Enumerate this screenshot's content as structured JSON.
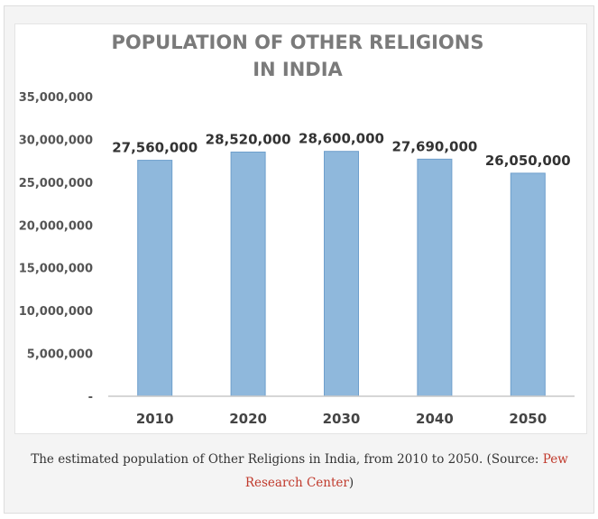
{
  "chart_data": {
    "type": "bar",
    "title_lines": [
      "POPULATION OF OTHER RELIGIONS",
      "IN INDIA"
    ],
    "categories": [
      "2010",
      "2020",
      "2030",
      "2040",
      "2050"
    ],
    "values": [
      27560000,
      28520000,
      28600000,
      27690000,
      26050000
    ],
    "data_labels": [
      "27,560,000",
      "28,520,000",
      "28,600,000",
      "27,690,000",
      "26,050,000"
    ],
    "ylim": [
      0,
      35000000
    ],
    "yticks": [
      0,
      5000000,
      10000000,
      15000000,
      20000000,
      25000000,
      30000000,
      35000000
    ],
    "ytick_labels": [
      "-",
      "5,000,000",
      "10,000,000",
      "15,000,000",
      "20,000,000",
      "25,000,000",
      "30,000,000",
      "35,000,000"
    ],
    "grid": false,
    "legend": "none",
    "bar_color": "#8fb8dc",
    "bar_edge_color": "#6e9fcc"
  },
  "caption": {
    "text": "The estimated population of Other Religions in India, from 2010 to 2050. (Source: ",
    "link_text": "Pew Research Center",
    "suffix": ")",
    "link_color": "#c0392b"
  }
}
